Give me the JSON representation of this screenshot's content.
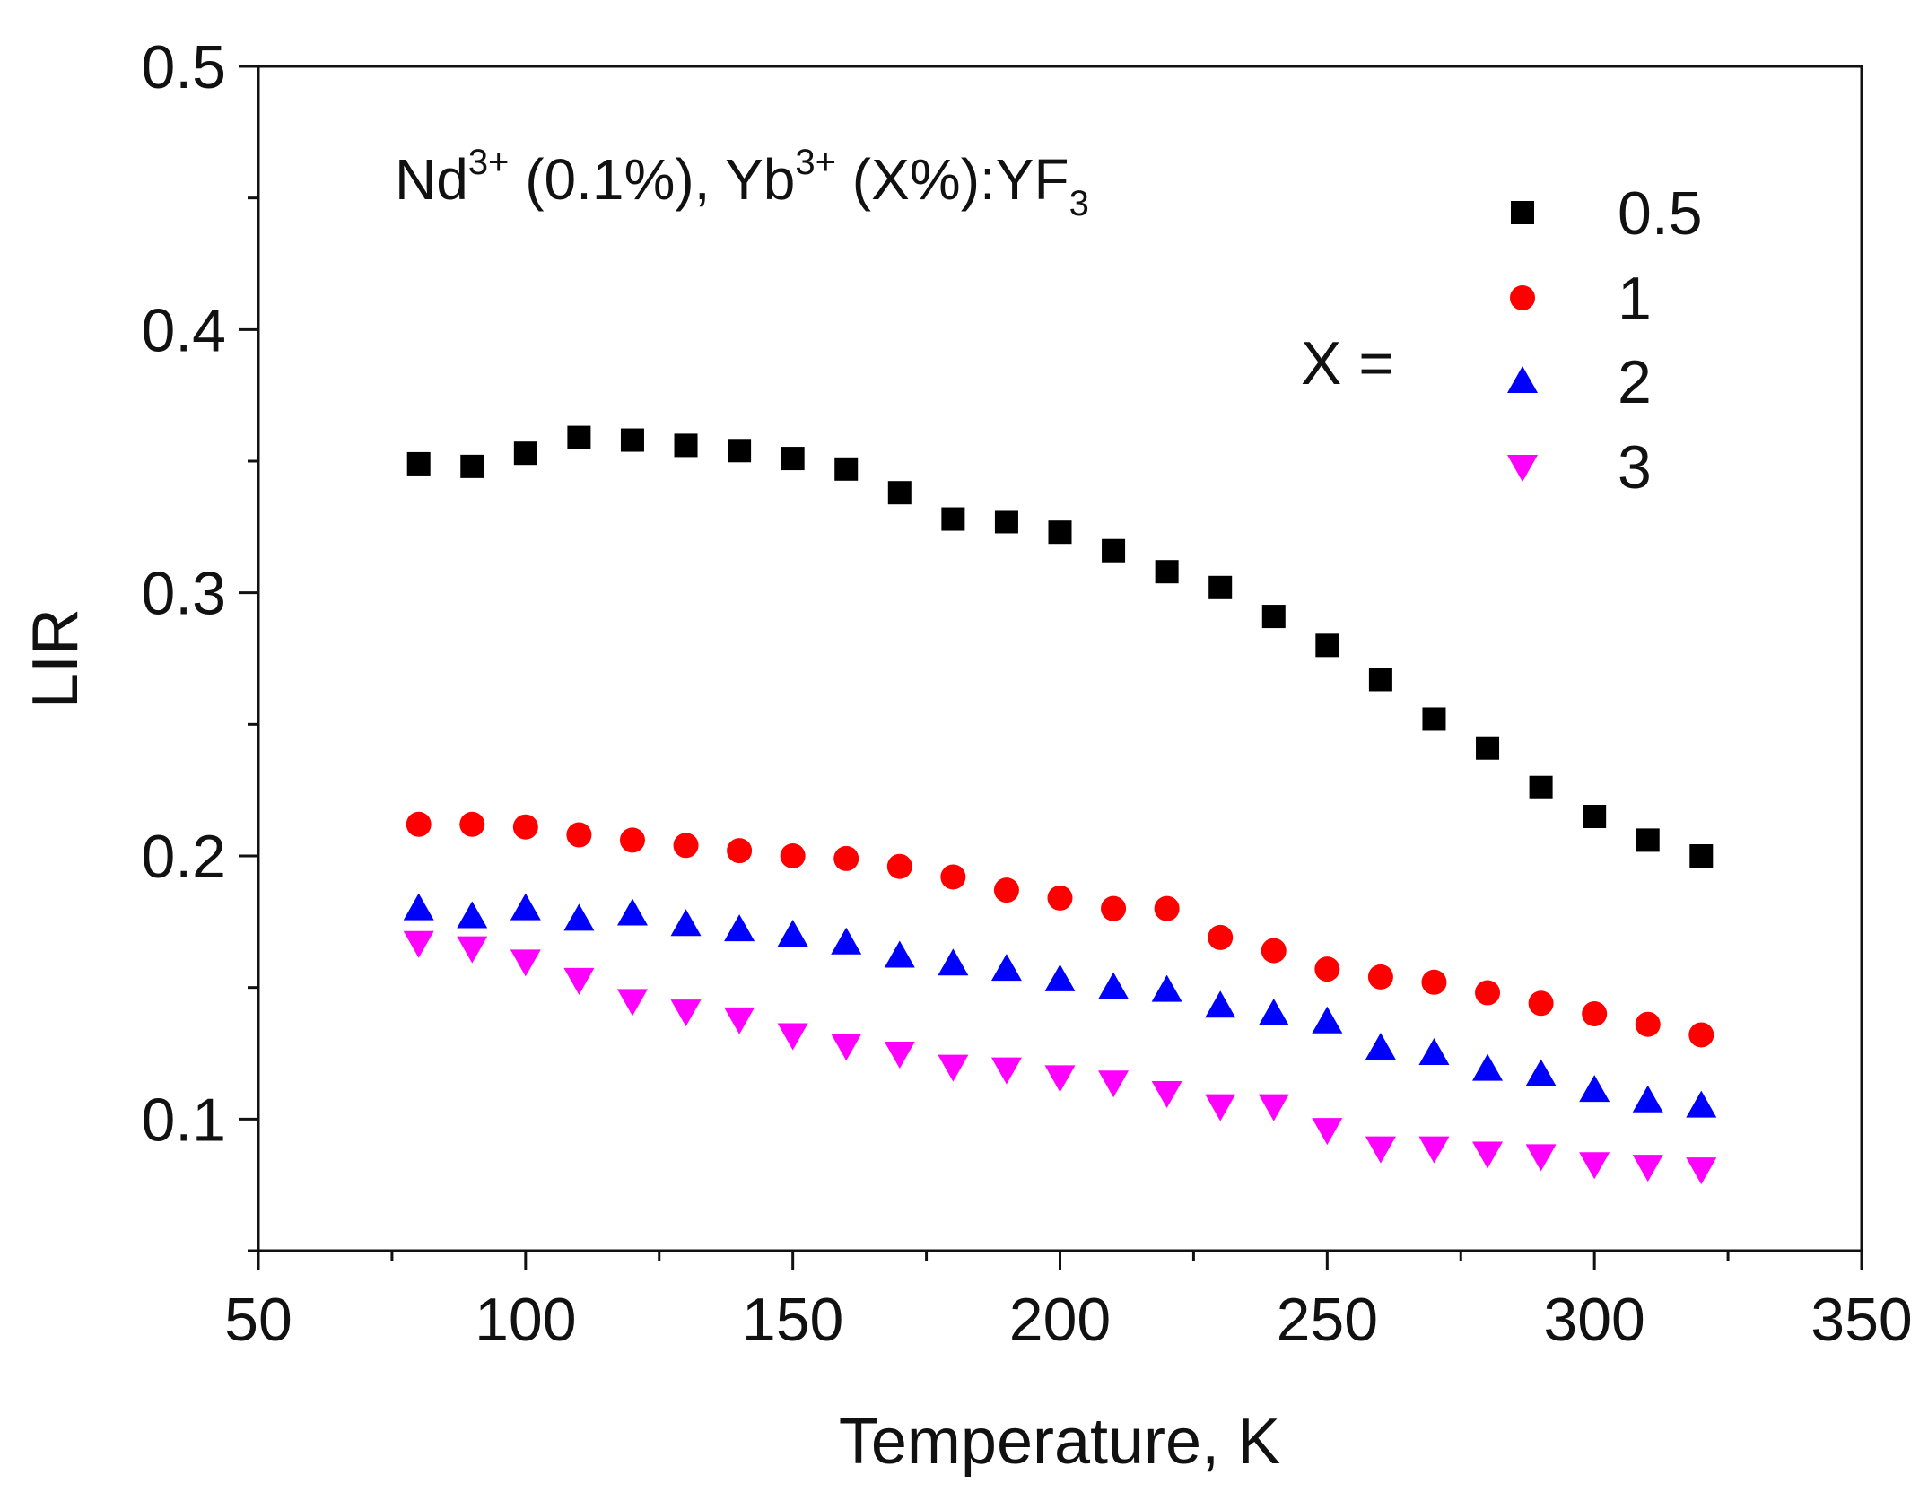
{
  "chart_data": {
    "type": "scatter",
    "title": "",
    "xlabel": "Temperature, K",
    "ylabel": "LIR",
    "xlim": [
      50,
      350
    ],
    "ylim": [
      0.05,
      0.5
    ],
    "x_ticks": [
      50,
      100,
      150,
      200,
      250,
      300,
      350
    ],
    "x_tick_labels": [
      "50",
      "100",
      "150",
      "200",
      "250",
      "300",
      "350"
    ],
    "y_ticks": [
      0.1,
      0.2,
      0.3,
      0.4,
      0.5
    ],
    "y_tick_labels": [
      "0.1",
      "0.2",
      "0.3",
      "0.4",
      "0.5"
    ],
    "grid": false,
    "legend_position": "top-right",
    "annotation": {
      "nd": "Nd",
      "nd_sup": "3+",
      "mid": " (0.1%), Yb",
      "yb_sup": "3+",
      "tail": " (X%):YF",
      "sub": "3"
    },
    "legend_title": "X =",
    "x": [
      80,
      90,
      100,
      110,
      120,
      130,
      140,
      150,
      160,
      170,
      180,
      190,
      200,
      210,
      220,
      230,
      240,
      250,
      260,
      270,
      280,
      290,
      300,
      310,
      320
    ],
    "series": [
      {
        "name": "0.5",
        "marker": "square",
        "color": "#000000",
        "values": [
          0.349,
          0.348,
          0.353,
          0.359,
          0.358,
          0.356,
          0.354,
          0.351,
          0.347,
          0.338,
          0.328,
          0.327,
          0.323,
          0.316,
          0.308,
          0.302,
          0.291,
          0.28,
          0.267,
          0.252,
          0.241,
          0.226,
          0.215,
          0.206,
          0.2
        ]
      },
      {
        "name": "1",
        "marker": "circle",
        "color": "#ff0000",
        "values": [
          0.212,
          0.212,
          0.211,
          0.208,
          0.206,
          0.204,
          0.202,
          0.2,
          0.199,
          0.196,
          0.192,
          0.187,
          0.184,
          0.18,
          0.18,
          0.169,
          0.164,
          0.157,
          0.154,
          0.152,
          0.148,
          0.144,
          0.14,
          0.136,
          0.132
        ]
      },
      {
        "name": "2",
        "marker": "triangle-up",
        "color": "#0000ff",
        "values": [
          0.18,
          0.177,
          0.18,
          0.176,
          0.178,
          0.174,
          0.172,
          0.17,
          0.167,
          0.162,
          0.159,
          0.157,
          0.153,
          0.15,
          0.149,
          0.143,
          0.14,
          0.137,
          0.127,
          0.125,
          0.119,
          0.117,
          0.111,
          0.107,
          0.105
        ]
      },
      {
        "name": "3",
        "marker": "triangle-down",
        "color": "#ff00ff",
        "values": [
          0.167,
          0.165,
          0.16,
          0.153,
          0.145,
          0.141,
          0.138,
          0.132,
          0.128,
          0.125,
          0.12,
          0.119,
          0.116,
          0.114,
          0.11,
          0.105,
          0.105,
          0.096,
          0.089,
          0.089,
          0.087,
          0.086,
          0.083,
          0.082,
          0.081
        ]
      }
    ]
  }
}
